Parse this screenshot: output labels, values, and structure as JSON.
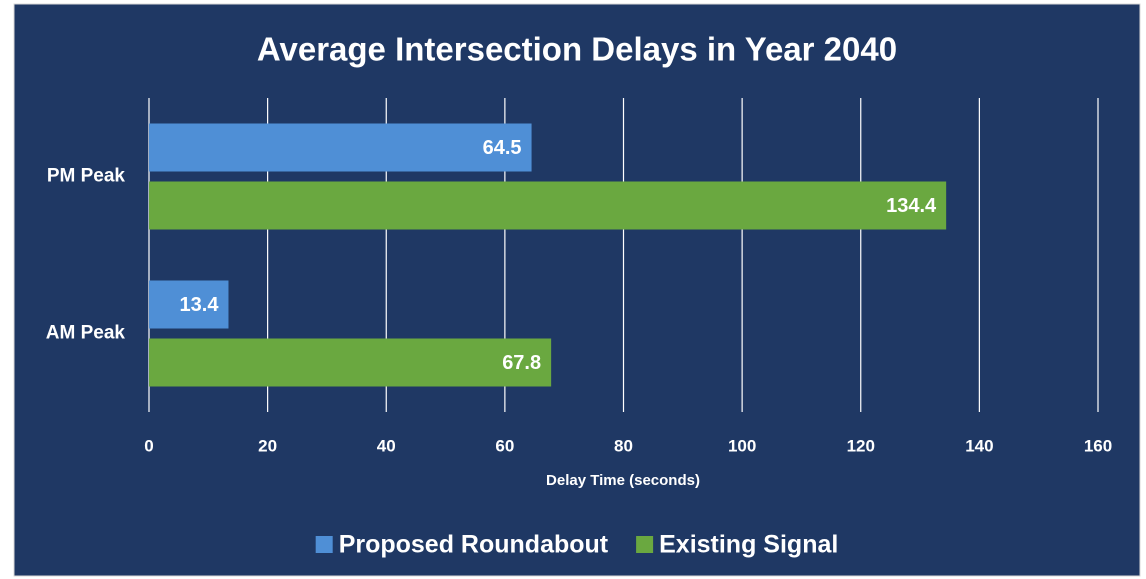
{
  "chart_data": {
    "type": "hbar",
    "title": "Average Intersection Delays in Year 2040",
    "x_label": "Delay Time (seconds)",
    "categories": [
      "AM Peak",
      "PM Peak"
    ],
    "series": [
      {
        "name": "Proposed Roundabout",
        "color": "#4f8fd6",
        "values": [
          13.4,
          64.5
        ]
      },
      {
        "name": "Existing Signal",
        "color": "#6aa840",
        "values": [
          67.8,
          134.4
        ]
      }
    ],
    "xlim": [
      0,
      160
    ],
    "xticks": [
      0,
      20,
      40,
      60,
      80,
      100,
      120,
      140,
      160
    ],
    "grid": true,
    "legend": "bottom"
  }
}
